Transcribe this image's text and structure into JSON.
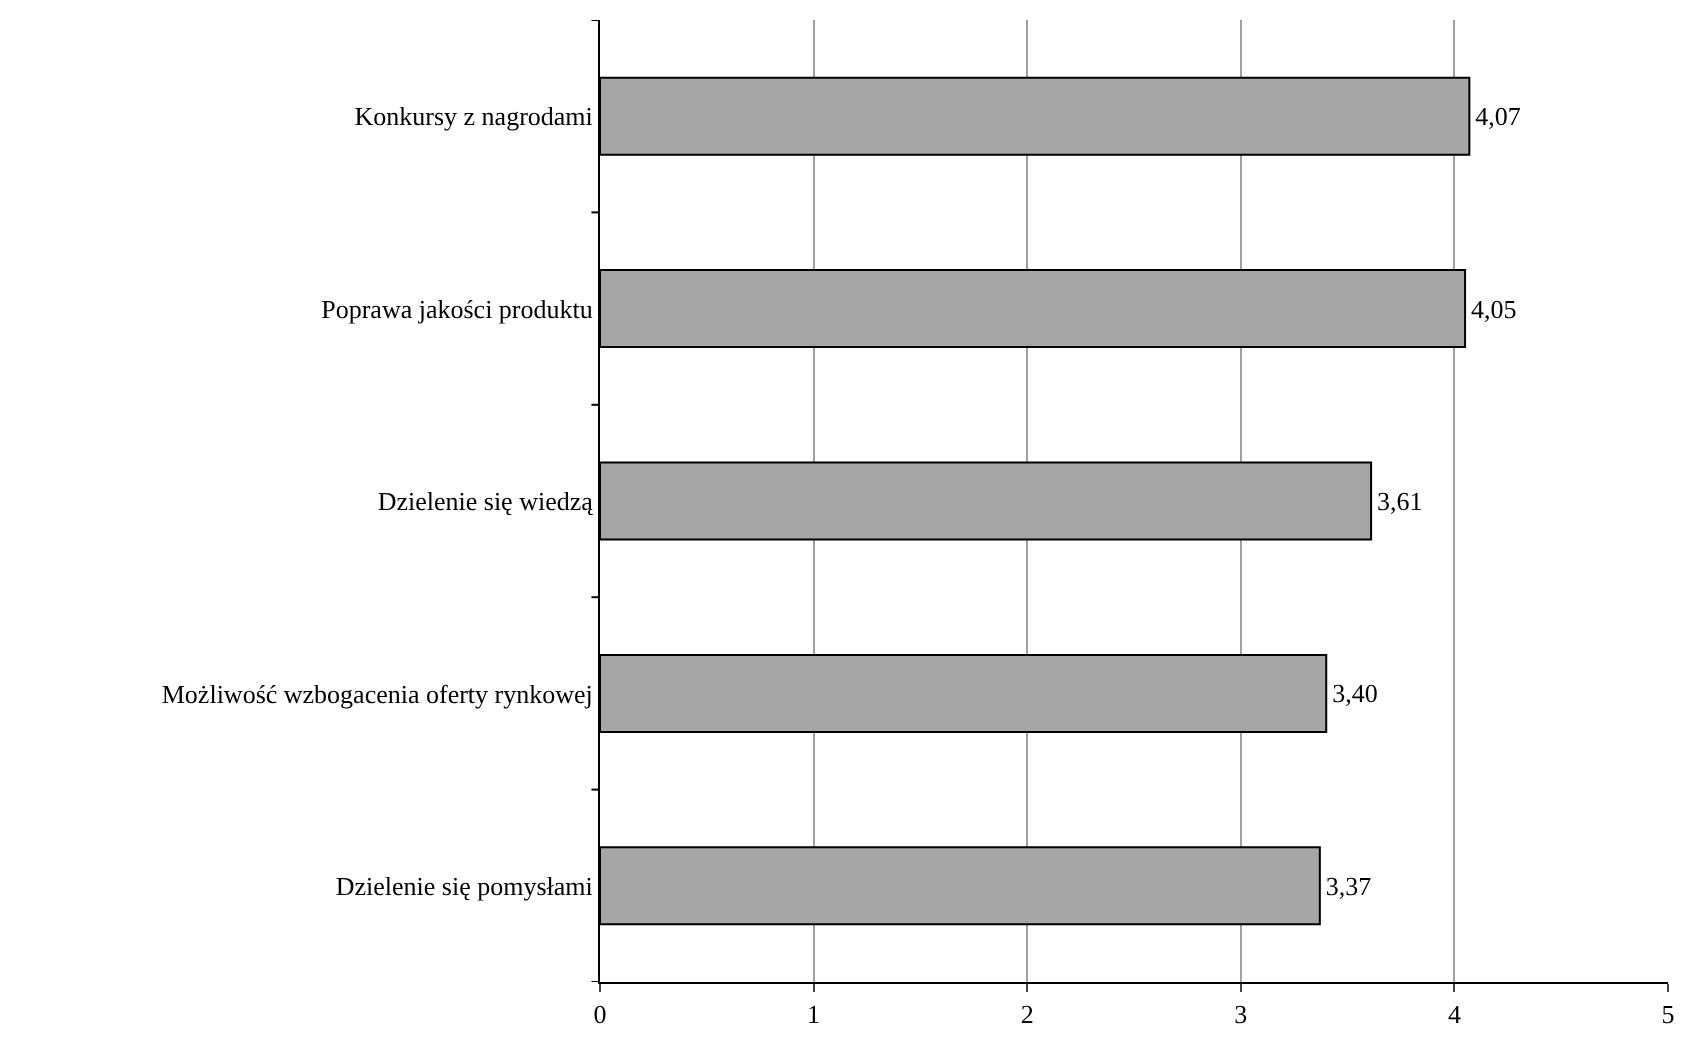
{
  "chart_data": {
    "type": "bar",
    "orientation": "horizontal",
    "categories": [
      "Konkursy z nagrodami",
      "Poprawa jakości produktu",
      "Dzielenie się wiedzą",
      "Możliwość wzbogacenia oferty rynkowej",
      "Dzielenie się pomysłami"
    ],
    "values": [
      4.07,
      4.05,
      3.61,
      3.4,
      3.37
    ],
    "value_labels": [
      "4,07",
      "4,05",
      "3,61",
      "3,40",
      "3,37"
    ],
    "color": "#a6a6a6",
    "xlim": [
      0,
      5
    ],
    "xticks": [
      0,
      1,
      2,
      3,
      4,
      5
    ],
    "grid": "x"
  }
}
